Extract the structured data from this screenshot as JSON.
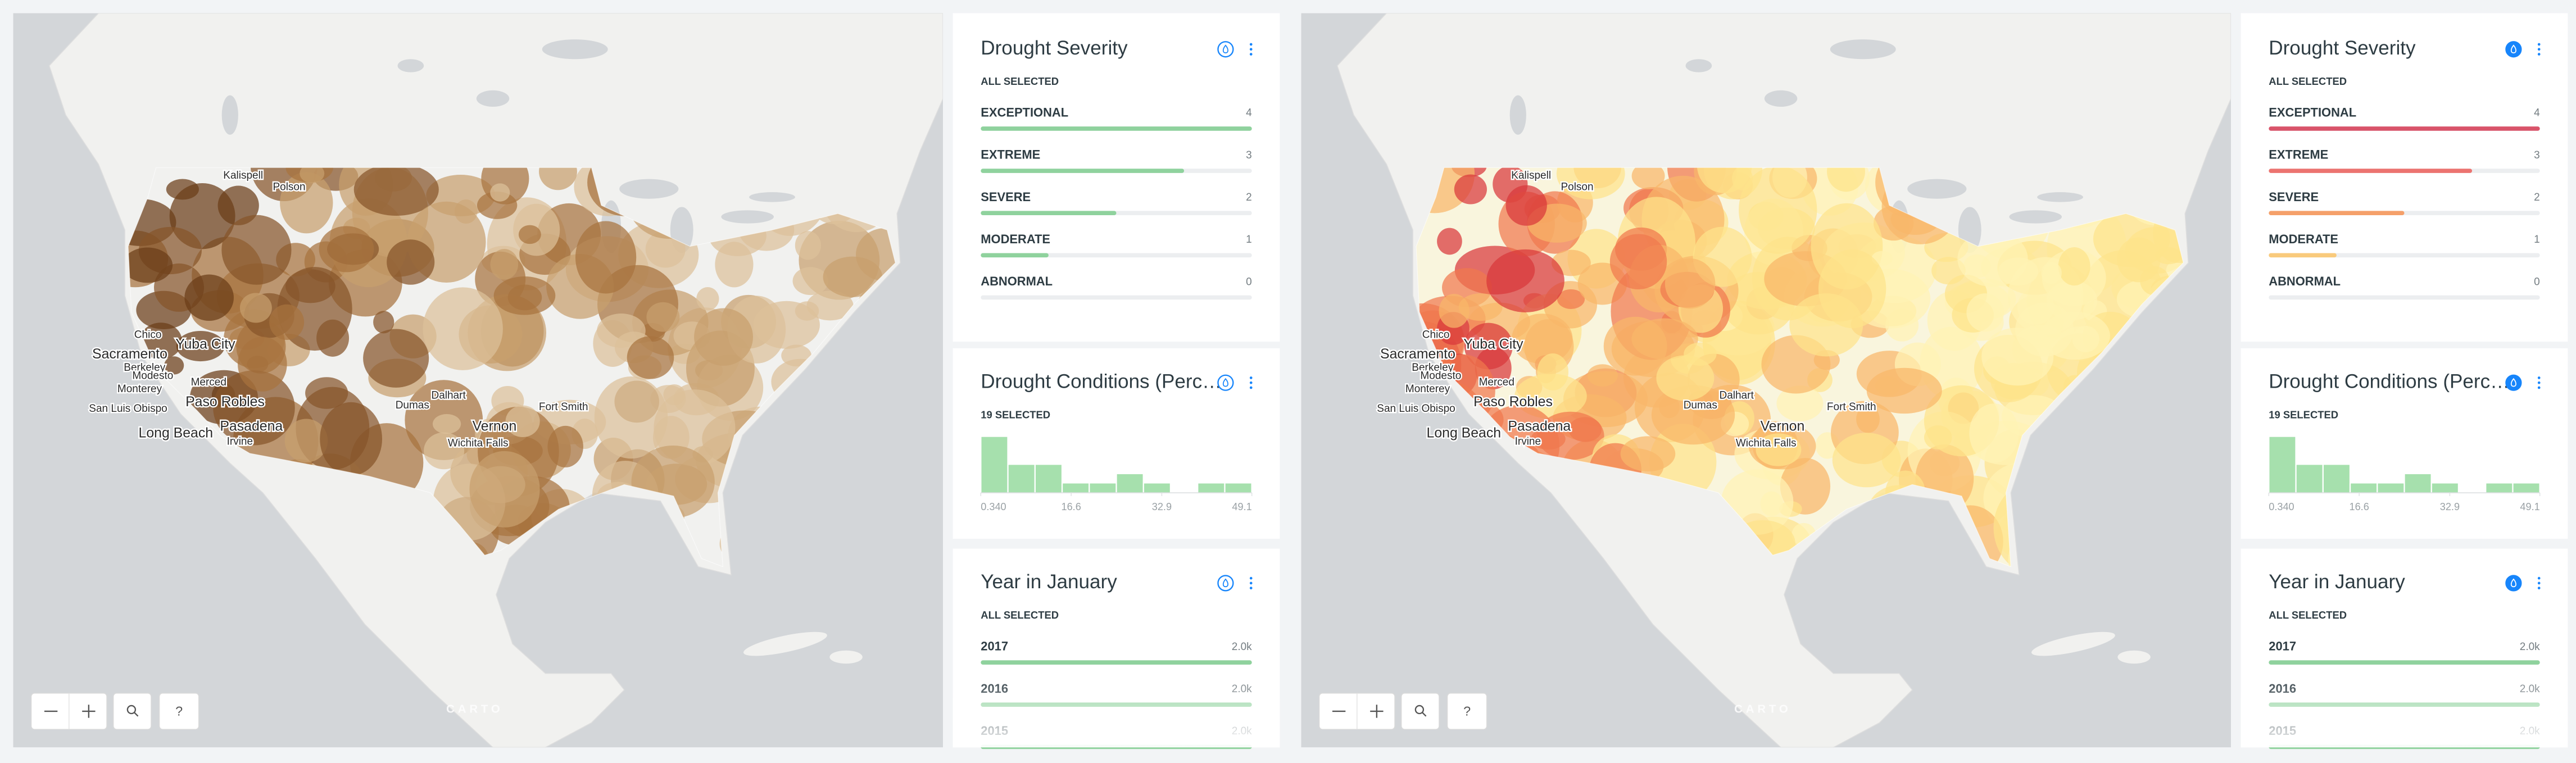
{
  "dashboards": [
    {
      "map": {
        "labels": [
          "Kalispell",
          "Polson",
          "Chico",
          "Yuba City",
          "Sacramento",
          "Berkeley",
          "Modesto",
          "Monterey",
          "Merced",
          "San Luis Obispo",
          "Paso Robles",
          "Long Beach",
          "Pasadena",
          "Irvine",
          "Dumas",
          "Dalhart",
          "Fort Smith",
          "Vernon",
          "Wichita Falls"
        ],
        "attribution": "CARTO",
        "help": "?"
      },
      "severity": {
        "title": "Drought Severity",
        "status": "ALL SELECTED",
        "categories": [
          "EXCEPTIONAL",
          "EXTREME",
          "SEVERE",
          "MODERATE",
          "ABNORMAL"
        ],
        "values": [
          4,
          3,
          2,
          1,
          0
        ],
        "colors": [
          "#8fd29d",
          "#8fd29d",
          "#8fd29d",
          "#8fd29d",
          "#8fd29d"
        ]
      },
      "conditions": {
        "title": "Drought Conditions (Perc…",
        "status": "19 SELECTED",
        "bins": [
          0.34,
          5.216,
          10.092,
          14.968,
          19.844,
          24.72,
          29.596,
          34.472,
          39.348,
          44.224,
          49.1
        ],
        "counts": [
          6,
          3,
          3,
          1,
          1,
          2,
          1,
          0,
          1,
          1
        ],
        "color": "#a6e0ad",
        "xlim": [
          0.34,
          49.1
        ],
        "xticks": [
          {
            "value": 0.34,
            "label": "0.340"
          },
          16.6,
          32.9,
          49.1
        ]
      },
      "years": {
        "title": "Year in January",
        "status": "ALL SELECTED",
        "categories": [
          "2017",
          "2016",
          "2015"
        ],
        "values": [
          2000,
          2000,
          2000
        ],
        "value_labels": [
          "2.0k",
          "2.0k",
          "2.0k"
        ],
        "color": "#8fd29d"
      }
    },
    {
      "map": {
        "labels": [
          "Kalispell",
          "Polson",
          "Chico",
          "Yuba City",
          "Sacramento",
          "Berkeley",
          "Modesto",
          "Monterey",
          "Merced",
          "San Luis Obispo",
          "Paso Robles",
          "Long Beach",
          "Pasadena",
          "Irvine",
          "Dumas",
          "Dalhart",
          "Fort Smith",
          "Vernon",
          "Wichita Falls"
        ],
        "attribution": "CARTO",
        "help": "?"
      },
      "severity": {
        "title": "Drought Severity",
        "status": "ALL SELECTED",
        "categories": [
          "EXCEPTIONAL",
          "EXTREME",
          "SEVERE",
          "MODERATE",
          "ABNORMAL"
        ],
        "values": [
          4,
          3,
          2,
          1,
          0
        ],
        "colors": [
          "#d9546a",
          "#ec7470",
          "#f5a06a",
          "#f9ca7c",
          "#fbe39a"
        ]
      },
      "conditions": {
        "title": "Drought Conditions (Perc…",
        "status": "19 SELECTED",
        "bins": [
          0.34,
          5.216,
          10.092,
          14.968,
          19.844,
          24.72,
          29.596,
          34.472,
          39.348,
          44.224,
          49.1
        ],
        "counts": [
          6,
          3,
          3,
          1,
          1,
          2,
          1,
          0,
          1,
          1
        ],
        "color": "#a6e0ad",
        "xlim": [
          0.34,
          49.1
        ],
        "xticks": [
          {
            "value": 0.34,
            "label": "0.340"
          },
          16.6,
          32.9,
          49.1
        ]
      },
      "years": {
        "title": "Year in January",
        "status": "ALL SELECTED",
        "categories": [
          "2017",
          "2016",
          "2015"
        ],
        "values": [
          2000,
          2000,
          2000
        ],
        "value_labels": [
          "2.0k",
          "2.0k",
          "2.0k"
        ],
        "color": "#8fd29d"
      }
    }
  ]
}
